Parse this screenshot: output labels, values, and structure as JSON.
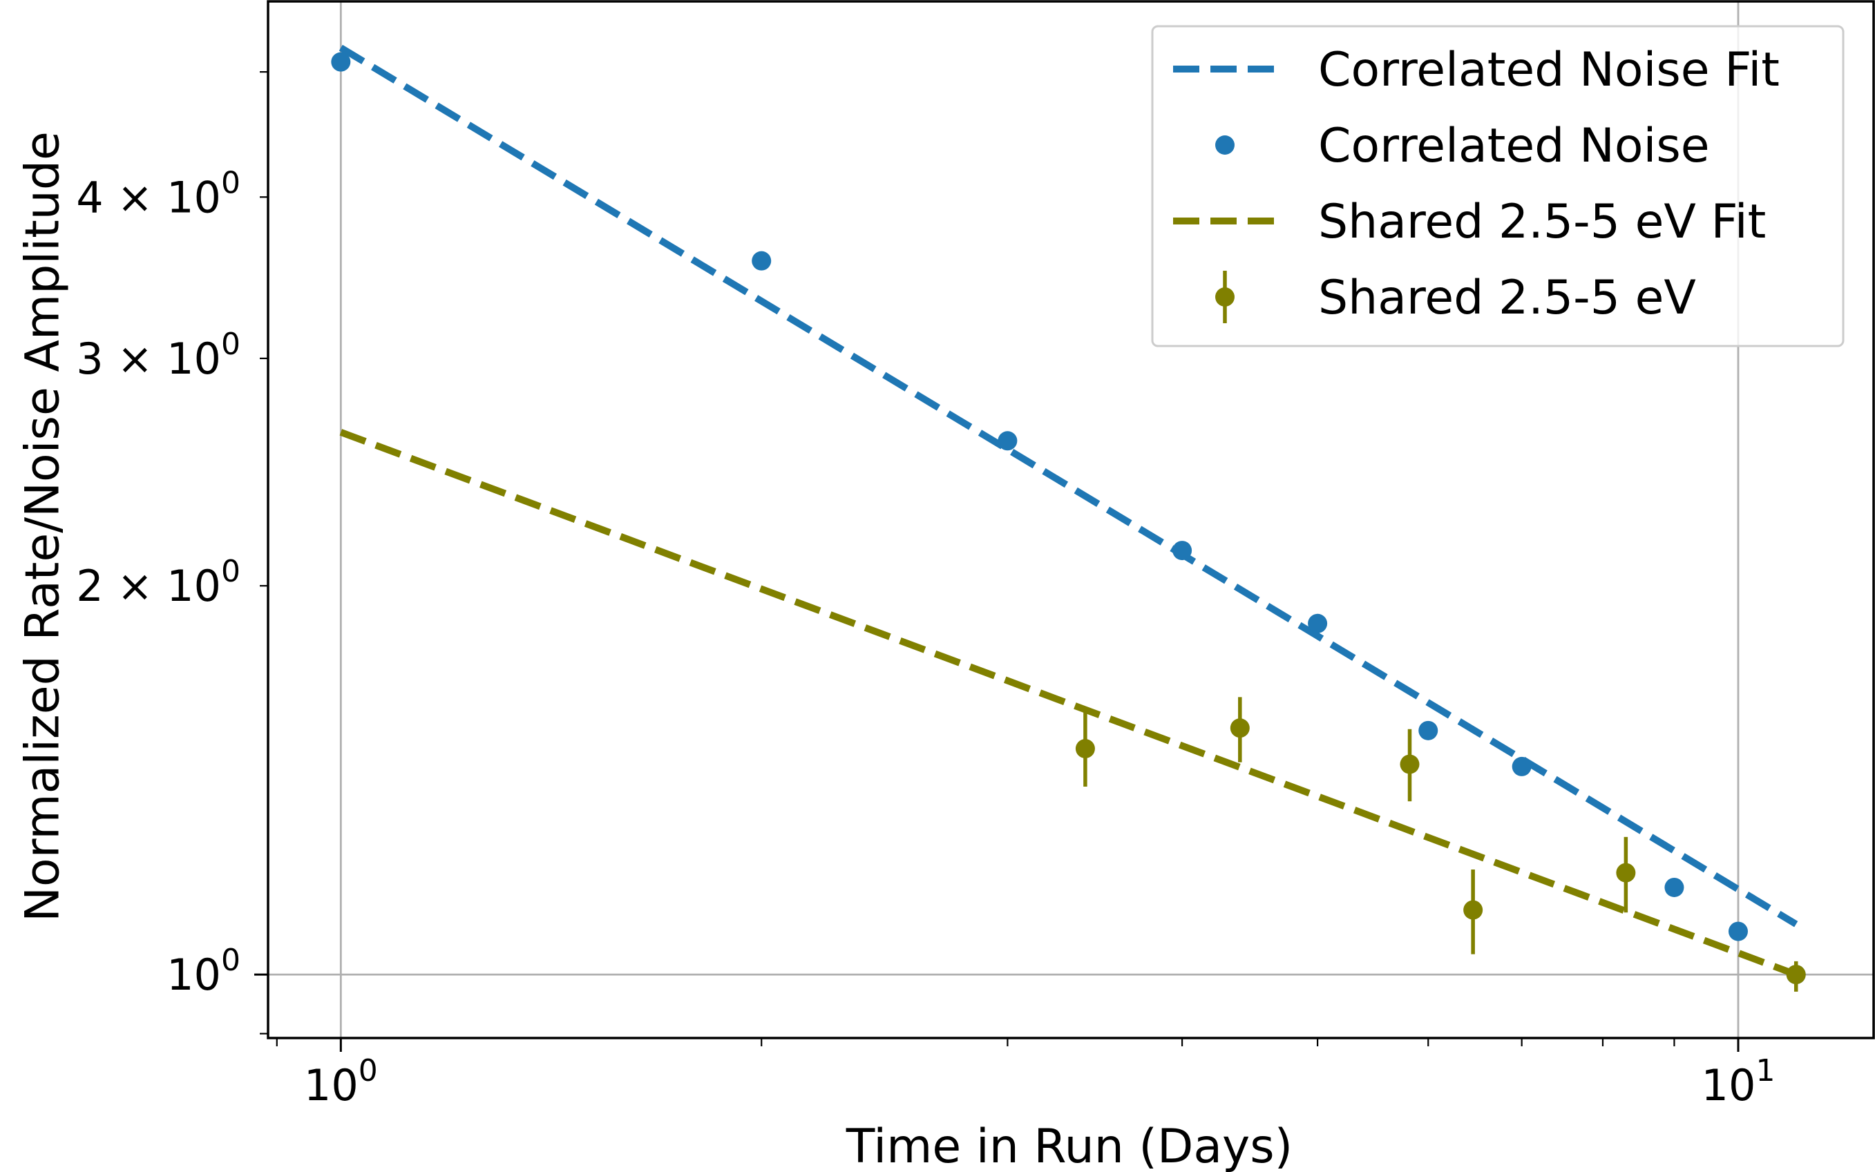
{
  "chart_data": {
    "type": "scatter",
    "title": "",
    "xlabel": "Time in Run (Days)",
    "ylabel": "Normalized Rate/Noise Amplitude",
    "xscale": "log",
    "yscale": "log",
    "xlim": [
      0.887,
      12.5
    ],
    "ylim": [
      0.893,
      5.67
    ],
    "grid": true,
    "x_major_ticks": [
      {
        "value": 1,
        "base": "10",
        "exp": "0"
      },
      {
        "value": 10,
        "base": "10",
        "exp": "1"
      }
    ],
    "x_minor_ticks": [
      0.9,
      2,
      3,
      4,
      5,
      6,
      7,
      8,
      9
    ],
    "y_major_ticks": [
      {
        "value": 1,
        "base": "10",
        "exp": "0"
      }
    ],
    "y_minor_ticks": [
      {
        "value": 0.9,
        "label": null
      },
      {
        "value": 2,
        "mant": "2",
        "base": "10",
        "exp": "0"
      },
      {
        "value": 3,
        "mant": "3",
        "base": "10",
        "exp": "0"
      },
      {
        "value": 4,
        "mant": "4",
        "base": "10",
        "exp": "0"
      },
      {
        "value": 5,
        "label": null
      }
    ],
    "legend_position": "top-right",
    "series": [
      {
        "name": "Correlated Noise Fit",
        "kind": "line",
        "style": "dashed",
        "color": "#1f77b4",
        "x": [
          1,
          11
        ],
        "y": [
          5.22,
          1.094
        ]
      },
      {
        "name": "Correlated Noise",
        "kind": "points",
        "color": "#1f77b4",
        "x": [
          1,
          2,
          3,
          4,
          5,
          6,
          7,
          9,
          10,
          11
        ],
        "y": [
          5.09,
          3.57,
          2.59,
          2.13,
          1.87,
          1.545,
          1.449,
          1.168,
          1.08,
          1.0
        ]
      },
      {
        "name": "Shared 2.5-5 eV Fit",
        "kind": "line",
        "style": "dashed",
        "color": "#808000",
        "x": [
          1,
          11
        ],
        "y": [
          2.63,
          1.0
        ]
      },
      {
        "name": "Shared 2.5-5 eV",
        "kind": "errorbar",
        "color": "#808000",
        "x": [
          3.41,
          4.4,
          5.82,
          6.46,
          8.31,
          11
        ],
        "y": [
          1.496,
          1.552,
          1.455,
          1.122,
          1.199,
          1.0
        ],
        "yerr_low": [
          1.398,
          1.46,
          1.362,
          1.037,
          1.117,
          0.97
        ],
        "yerr_high": [
          1.598,
          1.64,
          1.549,
          1.206,
          1.278,
          1.024
        ]
      }
    ]
  }
}
